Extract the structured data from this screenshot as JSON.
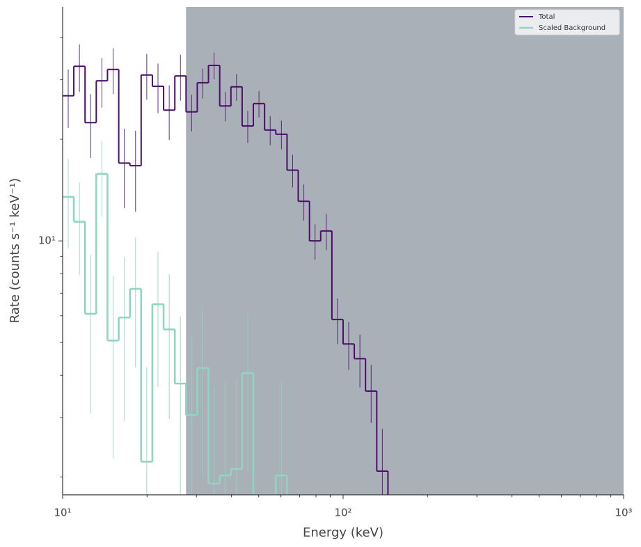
{
  "chart_data": {
    "type": "step",
    "xlabel": "Energy (keV)",
    "ylabel": "Rate (counts s⁻¹ keV⁻¹)",
    "xscale": "log",
    "yscale": "log",
    "xlim": [
      10,
      1000
    ],
    "ylim": [
      1.77,
      49.3
    ],
    "xticks": [
      {
        "value": 10,
        "label": "10¹"
      },
      {
        "value": 100,
        "label": "10²"
      },
      {
        "value": 1000,
        "label": "10³"
      }
    ],
    "xminorticks": [
      20,
      30,
      40,
      50,
      60,
      70,
      80,
      90,
      200,
      300,
      400,
      500,
      600,
      700,
      800,
      900
    ],
    "yticks": [
      {
        "value": 10,
        "label": "10¹"
      }
    ],
    "yminorticks": [
      2,
      3,
      4,
      5,
      6,
      7,
      8,
      9,
      20,
      30,
      40
    ],
    "shaded_region": {
      "x": [
        27.54,
        1000
      ],
      "color": "#aab0b8"
    },
    "legend": "upper right",
    "series": [
      {
        "name": "Total",
        "color": "#4b0c6b",
        "bins": [
          10,
          10.96,
          12.02,
          13.18,
          14.45,
          15.85,
          17.38,
          19.05,
          20.89,
          22.91,
          25.12,
          27.54,
          30.2,
          33.11,
          36.31,
          39.81,
          43.65,
          47.86,
          52.48,
          57.54,
          63.1,
          69.18,
          75.86,
          83.18,
          91.2,
          100,
          109.6,
          120.2,
          131.8,
          144.5
        ],
        "values": [
          26.9,
          32.9,
          22.4,
          29.8,
          32.2,
          17.0,
          16.7,
          31.0,
          28.7,
          24.4,
          30.8,
          24.1,
          29.4,
          33.1,
          25.1,
          28.6,
          21.9,
          25.5,
          21.3,
          20.7,
          16.2,
          13.1,
          10.0,
          10.7,
          5.85,
          4.95,
          4.48,
          3.59,
          2.08
        ],
        "errors": [
          5.3,
          5.3,
          4.8,
          5.0,
          5.0,
          4.5,
          4.5,
          4.8,
          4.8,
          4.5,
          4.8,
          3.0,
          3.0,
          3.0,
          2.5,
          2.6,
          2.4,
          2.3,
          2.1,
          2.0,
          1.8,
          1.6,
          1.2,
          1.3,
          0.9,
          0.8,
          0.8,
          0.7,
          0.7
        ]
      },
      {
        "name": "Scaled Background",
        "color": "#8fd5c2",
        "bins": [
          10,
          10.96,
          12.02,
          13.18,
          14.45,
          15.85,
          17.38,
          19.05,
          20.89,
          22.91,
          25.12,
          27.54,
          30.2,
          33.11,
          36.31,
          39.81,
          43.65,
          47.86,
          52.48,
          57.54,
          63.1
        ],
        "values": [
          13.5,
          11.4,
          6.08,
          15.8,
          5.07,
          5.93,
          7.21,
          2.22,
          6.49,
          5.47,
          3.78,
          3.05,
          4.2,
          1.91,
          2.02,
          2.11,
          4.06,
          0,
          0,
          2.02
        ],
        "errors": [
          4,
          3.5,
          3,
          4,
          2.8,
          3,
          3,
          2,
          2.8,
          2.5,
          2.2,
          2.2,
          2.2,
          1.8,
          1.8,
          1.8,
          2,
          0,
          0,
          1.8
        ]
      }
    ]
  }
}
